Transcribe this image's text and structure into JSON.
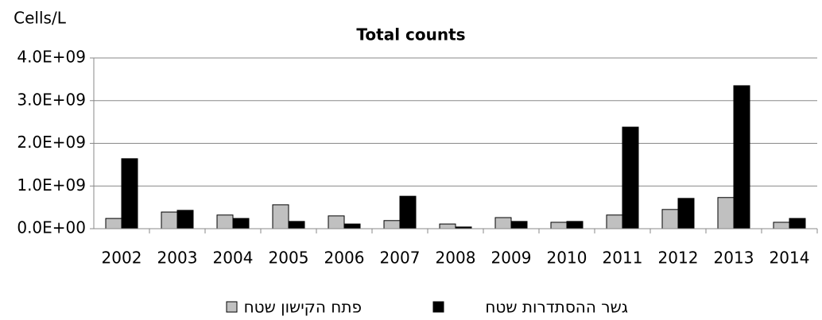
{
  "chart_data": {
    "type": "bar",
    "title": "Total counts",
    "ylabel": "Cells/L",
    "categories": [
      "2002",
      "2003",
      "2004",
      "2005",
      "2006",
      "2007",
      "2008",
      "2009",
      "2010",
      "2011",
      "2012",
      "2013",
      "2014"
    ],
    "series": [
      {
        "name": "פתח הקישון שטח",
        "color": "#c0c0c0",
        "values": [
          240000000,
          390000000,
          320000000,
          560000000,
          300000000,
          190000000,
          110000000,
          260000000,
          150000000,
          320000000,
          450000000,
          730000000,
          150000000
        ]
      },
      {
        "name": "גשר ההסתדרות שטח",
        "color": "#000000",
        "values": [
          1640000000,
          430000000,
          240000000,
          170000000,
          110000000,
          760000000,
          40000000,
          170000000,
          170000000,
          2380000000,
          710000000,
          3350000000,
          240000000
        ]
      }
    ],
    "ylim": [
      0,
      4000000000
    ],
    "yticks": [
      {
        "value": 0,
        "label": "0.0E+00"
      },
      {
        "value": 1000000000,
        "label": "1.0E+09"
      },
      {
        "value": 2000000000,
        "label": "2.0E+09"
      },
      {
        "value": 3000000000,
        "label": "3.0E+09"
      },
      {
        "value": 4000000000,
        "label": "4.0E+09"
      }
    ],
    "grid": true,
    "legend": "bottom"
  }
}
